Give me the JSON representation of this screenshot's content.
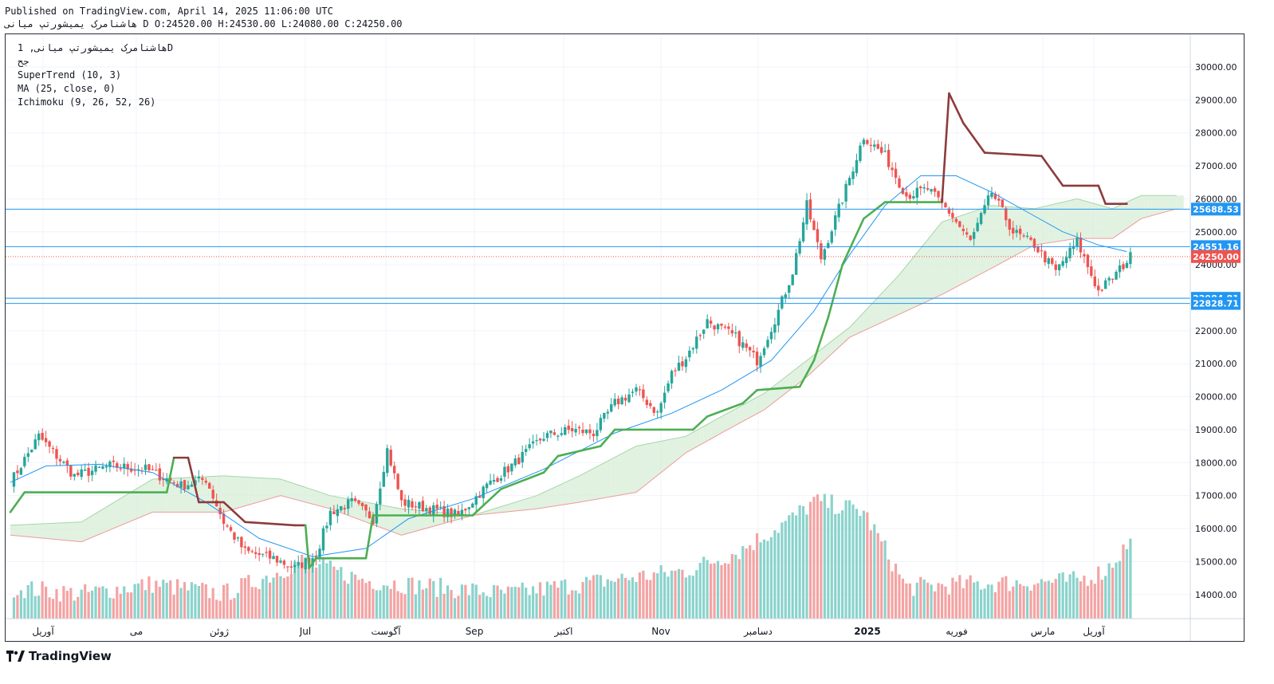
{
  "header": {
    "published": "Published on TradingView.com, April 14, 2025 11:06:00 UTC",
    "symbol": "هاشنامرک یمیشورتپ میانی",
    "interval_letter": "D",
    "ohlc": "O:24520.00 H:24530.00 L:24080.00 C:24250.00"
  },
  "legend": {
    "line1": "هاشنامرک یمیشورتپ میانی, 1D",
    "line2": "جح",
    "supertrend": "SuperTrend (10, 3)",
    "ma": "MA (25, close, 0)",
    "ichimoku": "Ichimoku (9, 26, 52, 26)"
  },
  "branding": {
    "logo_text": "TradingView"
  },
  "colors": {
    "up": "#26a69a",
    "down": "#ef5350",
    "vol_up": "#8ad3cc",
    "vol_down": "#f4a3a3",
    "supertrend_up": "#4caf50",
    "supertrend_down": "#8d3b3b",
    "ma": "#2196f3",
    "cloud_green": "#d7eed7",
    "cloud_red": "#f7d4d4",
    "hline": "#2196f3",
    "last_price": "#ef5350"
  },
  "chart_data": {
    "type": "candlestick",
    "y_axis_side": "right",
    "ylim": [
      13300,
      30700
    ],
    "yticks": [
      "30000.00",
      "29000.00",
      "28000.00",
      "27000.00",
      "26000.00",
      "25000.00",
      "24000.00",
      "23000.00",
      "22000.00",
      "21000.00",
      "20000.00",
      "19000.00",
      "18000.00",
      "17000.00",
      "16000.00",
      "15000.00",
      "14000.00"
    ],
    "xticks": [
      "آوریل",
      "می",
      "ژوئن",
      "Jul",
      "آگوست",
      "Sep",
      "اکتبر",
      "Nov",
      "دسامبر",
      "2025",
      "فوریه",
      "مارس",
      "آوریل"
    ],
    "horizontal_lines": [
      {
        "value": 25688.53,
        "label": "25688.53"
      },
      {
        "value": 24551.16,
        "label": "24551.16"
      },
      {
        "value": 22984.81,
        "label": "22984.81"
      },
      {
        "value": 22828.71,
        "label": "22828.71"
      }
    ],
    "last_price": {
      "value": 24250,
      "label": "24250.00"
    },
    "price_path": [
      [
        0,
        17400
      ],
      [
        8,
        18800
      ],
      [
        18,
        17600
      ],
      [
        28,
        17900
      ],
      [
        38,
        17800
      ],
      [
        48,
        17300
      ],
      [
        55,
        17500
      ],
      [
        60,
        16200
      ],
      [
        66,
        15300
      ],
      [
        74,
        15100
      ],
      [
        80,
        14800
      ],
      [
        86,
        15200
      ],
      [
        90,
        16500
      ],
      [
        96,
        16800
      ],
      [
        102,
        16300
      ],
      [
        106,
        18400
      ],
      [
        110,
        16800
      ],
      [
        118,
        16600
      ],
      [
        126,
        16400
      ],
      [
        134,
        17300
      ],
      [
        142,
        18000
      ],
      [
        150,
        18800
      ],
      [
        158,
        19000
      ],
      [
        164,
        18900
      ],
      [
        170,
        19800
      ],
      [
        176,
        20200
      ],
      [
        182,
        19500
      ],
      [
        186,
        20700
      ],
      [
        190,
        21200
      ],
      [
        196,
        22300
      ],
      [
        204,
        21800
      ],
      [
        210,
        21100
      ],
      [
        216,
        22600
      ],
      [
        220,
        23800
      ],
      [
        224,
        25800
      ],
      [
        228,
        24200
      ],
      [
        234,
        26000
      ],
      [
        240,
        27900
      ],
      [
        246,
        27300
      ],
      [
        252,
        26100
      ],
      [
        258,
        26300
      ],
      [
        264,
        25600
      ],
      [
        270,
        24700
      ],
      [
        276,
        26200
      ],
      [
        282,
        25000
      ],
      [
        288,
        24600
      ],
      [
        294,
        23800
      ],
      [
        300,
        24700
      ],
      [
        306,
        23200
      ],
      [
        310,
        23600
      ],
      [
        315,
        24250
      ]
    ],
    "volume_path": [
      [
        0,
        14100
      ],
      [
        20,
        13900
      ],
      [
        40,
        14200
      ],
      [
        60,
        13900
      ],
      [
        74,
        14500
      ],
      [
        82,
        14900
      ],
      [
        100,
        14300
      ],
      [
        140,
        13900
      ],
      [
        160,
        14200
      ],
      [
        190,
        14600
      ],
      [
        205,
        15200
      ],
      [
        220,
        16200
      ],
      [
        226,
        16700
      ],
      [
        232,
        16600
      ],
      [
        240,
        16400
      ],
      [
        252,
        14100
      ],
      [
        270,
        14200
      ],
      [
        300,
        14300
      ],
      [
        308,
        14600
      ],
      [
        315,
        15500
      ]
    ],
    "supertrend": [
      [
        0,
        16500
      ],
      [
        4,
        17100
      ],
      [
        44,
        17100
      ],
      [
        46,
        18150
      ],
      [
        50,
        18150
      ],
      [
        53,
        16800
      ],
      [
        60,
        16800
      ],
      [
        66,
        16200
      ],
      [
        80,
        16100
      ],
      [
        83,
        16100
      ],
      [
        84,
        14800
      ],
      [
        86,
        15100
      ],
      [
        100,
        15100
      ],
      [
        102,
        16400
      ],
      [
        130,
        16400
      ],
      [
        138,
        17200
      ],
      [
        150,
        17700
      ],
      [
        154,
        18200
      ],
      [
        166,
        18500
      ],
      [
        170,
        19000
      ],
      [
        192,
        19000
      ],
      [
        196,
        19400
      ],
      [
        206,
        19800
      ],
      [
        210,
        20200
      ],
      [
        222,
        20300
      ],
      [
        226,
        21100
      ],
      [
        230,
        22400
      ],
      [
        234,
        24000
      ],
      [
        240,
        25400
      ],
      [
        246,
        25900
      ],
      [
        262,
        25900
      ],
      [
        264,
        29200
      ],
      [
        268,
        28300
      ],
      [
        274,
        27400
      ],
      [
        290,
        27300
      ],
      [
        296,
        26400
      ],
      [
        306,
        26400
      ],
      [
        308,
        25850
      ],
      [
        314,
        25850
      ]
    ],
    "moving_average": [
      [
        0,
        17400
      ],
      [
        10,
        17900
      ],
      [
        25,
        17950
      ],
      [
        40,
        17700
      ],
      [
        55,
        16800
      ],
      [
        70,
        15700
      ],
      [
        85,
        15150
      ],
      [
        100,
        15400
      ],
      [
        112,
        16300
      ],
      [
        130,
        16900
      ],
      [
        150,
        17800
      ],
      [
        170,
        18900
      ],
      [
        186,
        19500
      ],
      [
        200,
        20200
      ],
      [
        214,
        21100
      ],
      [
        226,
        22600
      ],
      [
        236,
        24300
      ],
      [
        246,
        25800
      ],
      [
        256,
        26700
      ],
      [
        266,
        26700
      ],
      [
        276,
        26200
      ],
      [
        286,
        25600
      ],
      [
        296,
        25000
      ],
      [
        306,
        24600
      ],
      [
        314,
        24400
      ]
    ],
    "ichimoku_cloud": {
      "span_a": [
        [
          0,
          16100
        ],
        [
          20,
          16200
        ],
        [
          40,
          17500
        ],
        [
          60,
          17600
        ],
        [
          76,
          17500
        ],
        [
          90,
          17000
        ],
        [
          110,
          16600
        ],
        [
          130,
          16400
        ],
        [
          148,
          17000
        ],
        [
          160,
          17600
        ],
        [
          176,
          18500
        ],
        [
          190,
          18800
        ],
        [
          200,
          19400
        ],
        [
          212,
          20100
        ],
        [
          224,
          21100
        ],
        [
          236,
          22100
        ],
        [
          250,
          23700
        ],
        [
          262,
          25300
        ],
        [
          276,
          25800
        ],
        [
          288,
          25700
        ],
        [
          300,
          26000
        ],
        [
          310,
          25700
        ],
        [
          318,
          26100
        ],
        [
          328,
          26100
        ]
      ],
      "span_b": [
        [
          0,
          15800
        ],
        [
          20,
          15600
        ],
        [
          40,
          16500
        ],
        [
          60,
          16500
        ],
        [
          76,
          17000
        ],
        [
          90,
          16600
        ],
        [
          110,
          15800
        ],
        [
          130,
          16400
        ],
        [
          148,
          16600
        ],
        [
          160,
          16800
        ],
        [
          176,
          17100
        ],
        [
          190,
          18300
        ],
        [
          200,
          18900
        ],
        [
          212,
          19600
        ],
        [
          224,
          20600
        ],
        [
          236,
          21800
        ],
        [
          250,
          22500
        ],
        [
          262,
          23100
        ],
        [
          276,
          23900
        ],
        [
          288,
          24600
        ],
        [
          300,
          24800
        ],
        [
          310,
          24800
        ],
        [
          318,
          25400
        ],
        [
          328,
          25700
        ]
      ]
    }
  }
}
